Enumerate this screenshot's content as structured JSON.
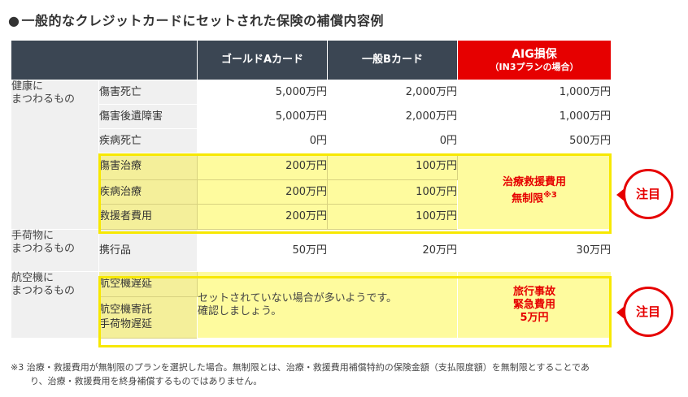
{
  "title": "一般的なクレジットカードにセットされた保険の補償内容例",
  "header": {
    "gold": "ゴールドAカード",
    "general": "一般Bカード",
    "aig_main": "AIG損保",
    "aig_sub": "（IN3プランの場合）"
  },
  "groups": {
    "health": "健康に まつわるもの",
    "baggage": "手荷物に まつわるもの",
    "aircraft": "航空機に まつわるもの"
  },
  "rows": [
    {
      "item": "傷害死亡",
      "gold": "5,000万円",
      "general": "2,000万円",
      "aig": "1,000万円"
    },
    {
      "item": "傷害後遺障害",
      "gold": "5,000万円",
      "general": "2,000万円",
      "aig": "1,000万円"
    },
    {
      "item": "疾病死亡",
      "gold": "0円",
      "general": "0円",
      "aig": "500万円"
    },
    {
      "item": "傷害治療",
      "gold": "200万円",
      "general": "100万円"
    },
    {
      "item": "疾病治療",
      "gold": "200万円",
      "general": "100万円"
    },
    {
      "item": "救援者費用",
      "gold": "200万円",
      "general": "100万円"
    },
    {
      "item": "携行品",
      "gold": "50万円",
      "general": "20万円",
      "aig": "30万円"
    },
    {
      "item": "航空機遅延"
    },
    {
      "item": "航空機寄託 手荷物遅延"
    }
  ],
  "medical_merge": {
    "line1": "治療救援費用",
    "line2": "無制限",
    "mark": "※3"
  },
  "not_set": {
    "line1": "セットされていない場合が多いようです。",
    "line2": "確認しましょう。"
  },
  "travel_merge": {
    "line1": "旅行事故",
    "line2": "緊急費用",
    "line3": "5万円"
  },
  "badge_label": "注目",
  "footnote": {
    "line1": "※3 治療・救援費用が無制限のプランを選択した場合。無制限とは、治療・救援費用補償特約の保険金額（支払限度額）を無制限とすることであ",
    "line2": "り、治療・救援費用を終身補償するものではありません。"
  },
  "colors": {
    "header_dark": "#3b4653",
    "aig_red": "#e60000",
    "highlight_yellow": "#fefb9e",
    "box_yellow": "#f7e800"
  }
}
